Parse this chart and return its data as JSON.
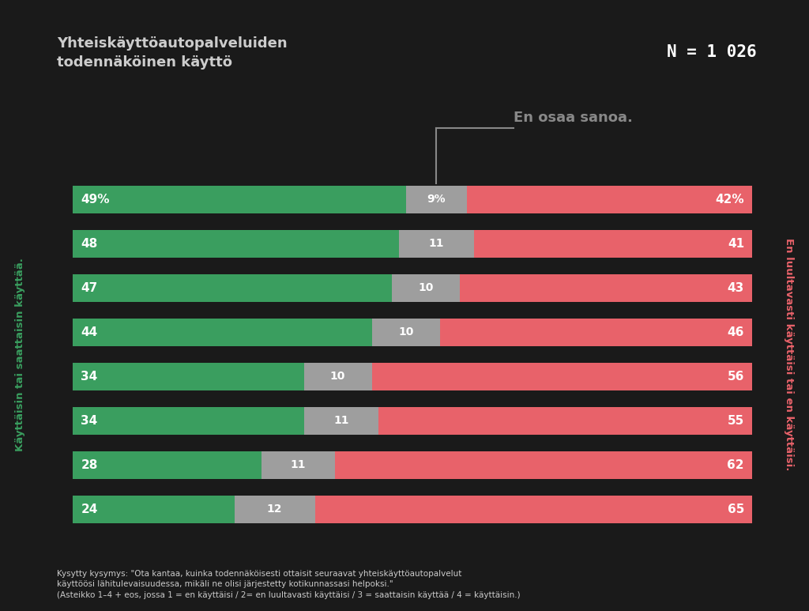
{
  "title_line1": "Yhteiskäyttöautopalveluiden",
  "title_line2": "todennäköinen käyttö",
  "n_label": "N = 1 026",
  "annotation": "En osaa sanoa.",
  "footnote_line1": "Kysytty kysymys: \"Ota kantaa, kuinka todennäköisesti ottaisit seuraavat yhteiskäyttöautopalvelut",
  "footnote_line2": "käyttöösi lähitulevaisuudessa, mikäli ne olisi järjestetty kotikunnassasi helpoksi.\"",
  "footnote_line3": "(Asteikko 1–4 + eos, jossa 1 = en käyttäisi / 2= en luultavasti käyttäisi / 3 = saattaisin käyttää / 4 = käyttäisin.)",
  "green_axis_label": "Käyttäisin tai saattaisin käyttää.",
  "red_axis_label": "En luultavasti käyttäisi tai en käyttäisi.",
  "rows": [
    {
      "green": 49,
      "gray": 9,
      "red": 42,
      "green_label": "49%",
      "gray_label": "9%",
      "red_label": "42%"
    },
    {
      "green": 48,
      "gray": 11,
      "red": 41,
      "green_label": "48",
      "gray_label": "11",
      "red_label": "41"
    },
    {
      "green": 47,
      "gray": 10,
      "red": 43,
      "green_label": "47",
      "gray_label": "10",
      "red_label": "43"
    },
    {
      "green": 44,
      "gray": 10,
      "red": 46,
      "green_label": "44",
      "gray_label": "10",
      "red_label": "46"
    },
    {
      "green": 34,
      "gray": 10,
      "red": 56,
      "green_label": "34",
      "gray_label": "10",
      "red_label": "56"
    },
    {
      "green": 34,
      "gray": 11,
      "red": 55,
      "green_label": "34",
      "gray_label": "11",
      "red_label": "55"
    },
    {
      "green": 28,
      "gray": 11,
      "red": 62,
      "green_label": "28",
      "gray_label": "11",
      "red_label": "62"
    },
    {
      "green": 24,
      "gray": 12,
      "red": 65,
      "green_label": "24",
      "gray_label": "12",
      "red_label": "65"
    }
  ],
  "green_color": "#3a9e5f",
  "gray_color": "#9e9e9e",
  "red_color": "#e8626a",
  "bg_color": "#1a1a1a",
  "text_color_white": "#ffffff",
  "text_color_light": "#cccccc",
  "text_color_annotation": "#888888",
  "title_color": "#cccccc",
  "green_axis_label_color": "#3a9e5f",
  "red_axis_label_color": "#e8626a",
  "n_box_color": "#2176c7"
}
